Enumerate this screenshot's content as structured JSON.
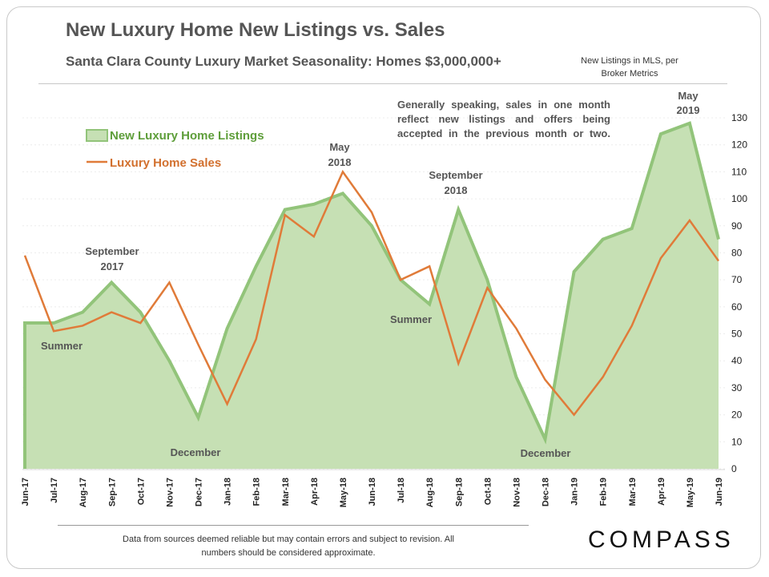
{
  "header": {
    "title": "New Luxury Home New Listings vs. Sales",
    "subtitle": "Santa Clara County Luxury Market Seasonality: Homes $3,000,000+",
    "source_note": "New Listings in MLS, per Broker Metrics",
    "explanation": "Generally speaking, sales in one month reflect new listings and offers being accepted in the previous month or two."
  },
  "footer": {
    "disclaimer": "Data from sources deemed reliable but may contain errors and subject to revision. All numbers should be considered approximate.",
    "logo": "COMPASS"
  },
  "colors": {
    "listings_fill": "#c6e0b4",
    "listings_line": "#92c47a",
    "sales_line": "#e07b39"
  },
  "chart_data": {
    "type": "area",
    "title": "New Luxury Home New Listings vs. Sales",
    "categories": [
      "Jun-17",
      "Jul-17",
      "Aug-17",
      "Sep-17",
      "Oct-17",
      "Nov-17",
      "Dec-17",
      "Jan-18",
      "Feb-18",
      "Mar-18",
      "Apr-18",
      "May-18",
      "Jun-18",
      "Jul-18",
      "Aug-18",
      "Sep-18",
      "Oct-18",
      "Nov-18",
      "Dec-18",
      "Jan-19",
      "Feb-19",
      "Mar-19",
      "Apr-19",
      "May-19",
      "Jun-19"
    ],
    "series": [
      {
        "name": "New Luxury Home Listings",
        "type": "area",
        "values": [
          54,
          54,
          58,
          69,
          58,
          40,
          19,
          52,
          75,
          96,
          98,
          102,
          90,
          70,
          61,
          96,
          70,
          34,
          11,
          73,
          85,
          89,
          124,
          128,
          85
        ]
      },
      {
        "name": "Luxury Home Sales",
        "type": "line",
        "values": [
          79,
          51,
          53,
          58,
          54,
          69,
          46,
          24,
          48,
          94,
          86,
          110,
          95,
          70,
          75,
          39,
          67,
          52,
          33,
          20,
          34,
          53,
          78,
          92,
          77
        ]
      }
    ],
    "y_axis": {
      "position": "right",
      "min": 0,
      "max": 130,
      "ticks": [
        0,
        10,
        20,
        30,
        40,
        50,
        60,
        70,
        80,
        90,
        100,
        110,
        120,
        130
      ]
    },
    "legend": {
      "position": "top-left",
      "entries": [
        "New Luxury Home Listings",
        "Luxury Home Sales"
      ]
    },
    "annotations": [
      {
        "text": [
          "September",
          "2017"
        ],
        "at": "Sep-17"
      },
      {
        "text": [
          "Summer"
        ],
        "at": "Jul-17"
      },
      {
        "text": [
          "December"
        ],
        "at": "Dec-17"
      },
      {
        "text": [
          "May",
          "2018"
        ],
        "at": "May-18"
      },
      {
        "text": [
          "September",
          "2018"
        ],
        "at": "Sep-18"
      },
      {
        "text": [
          "Summer"
        ],
        "at": "Aug-18"
      },
      {
        "text": [
          "December"
        ],
        "at": "Dec-18"
      },
      {
        "text": [
          "May",
          "2019"
        ],
        "at": "May-19"
      }
    ]
  }
}
